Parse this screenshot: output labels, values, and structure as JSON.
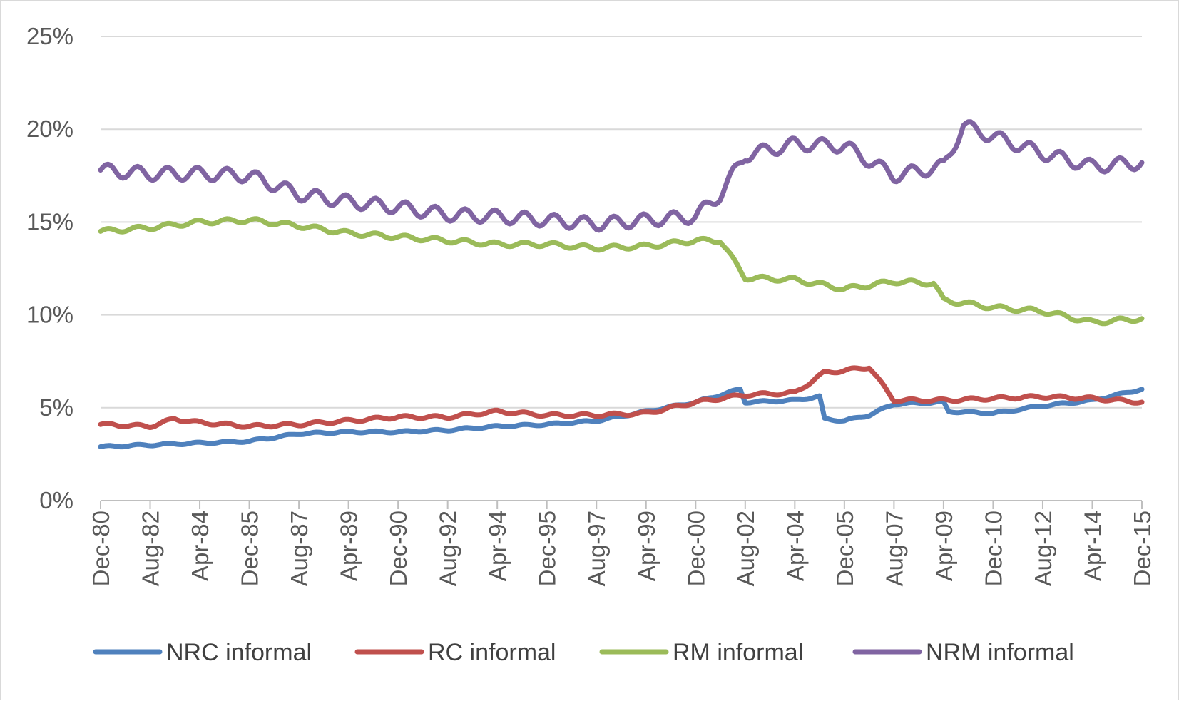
{
  "chart_data": {
    "type": "line",
    "title": "",
    "xlabel": "",
    "ylabel": "",
    "y_unit": "%",
    "ylim": [
      0,
      25
    ],
    "y_ticks": [
      0,
      5,
      10,
      15,
      20,
      25
    ],
    "y_tick_labels": [
      "0%",
      "5%",
      "10%",
      "15%",
      "20%",
      "25%"
    ],
    "x_range": [
      "1980-12",
      "2015-12"
    ],
    "x_tick_labels": [
      "Dec-80",
      "Aug-82",
      "Apr-84",
      "Dec-85",
      "Aug-87",
      "Apr-89",
      "Dec-90",
      "Aug-92",
      "Apr-94",
      "Dec-95",
      "Aug-97",
      "Apr-99",
      "Dec-00",
      "Aug-02",
      "Apr-04",
      "Dec-05",
      "Aug-07",
      "Apr-09",
      "Dec-10",
      "Aug-12",
      "Apr-14",
      "Dec-15"
    ],
    "grid": "horizontal",
    "legend": "bottom",
    "series": [
      {
        "name": "NRC informal",
        "color": "#4f81bd",
        "points": [
          [
            "1980-12",
            2.9
          ],
          [
            "1982-08",
            3.0
          ],
          [
            "1984-04",
            3.1
          ],
          [
            "1985-12",
            3.2
          ],
          [
            "1987-08",
            3.6
          ],
          [
            "1989-04",
            3.7
          ],
          [
            "1990-12",
            3.7
          ],
          [
            "1992-08",
            3.8
          ],
          [
            "1994-04",
            4.0
          ],
          [
            "1995-12",
            4.1
          ],
          [
            "1997-08",
            4.3
          ],
          [
            "1999-04",
            4.8
          ],
          [
            "2000-12",
            5.3
          ],
          [
            "2002-06",
            6.0
          ],
          [
            "2002-08",
            5.3
          ],
          [
            "2004-04",
            5.4
          ],
          [
            "2005-02",
            5.6
          ],
          [
            "2005-04",
            4.4
          ],
          [
            "2005-12",
            4.3
          ],
          [
            "2006-10",
            4.6
          ],
          [
            "2007-08",
            5.2
          ],
          [
            "2009-04",
            5.3
          ],
          [
            "2009-06",
            4.8
          ],
          [
            "2010-12",
            4.7
          ],
          [
            "2012-08",
            5.1
          ],
          [
            "2014-04",
            5.4
          ],
          [
            "2015-12",
            6.0
          ]
        ]
      },
      {
        "name": "RC informal",
        "color": "#c0504d",
        "points": [
          [
            "1980-12",
            4.1
          ],
          [
            "1982-08",
            4.0
          ],
          [
            "1983-06",
            4.4
          ],
          [
            "1984-04",
            4.2
          ],
          [
            "1985-12",
            4.0
          ],
          [
            "1987-08",
            4.1
          ],
          [
            "1989-04",
            4.3
          ],
          [
            "1990-12",
            4.5
          ],
          [
            "1992-08",
            4.5
          ],
          [
            "1994-04",
            4.8
          ],
          [
            "1995-12",
            4.6
          ],
          [
            "1997-08",
            4.6
          ],
          [
            "1999-04",
            4.7
          ],
          [
            "2000-12",
            5.3
          ],
          [
            "2002-08",
            5.7
          ],
          [
            "2004-04",
            5.8
          ],
          [
            "2005-04",
            6.9
          ],
          [
            "2005-12",
            7.0
          ],
          [
            "2006-10",
            7.2
          ],
          [
            "2007-08",
            5.4
          ],
          [
            "2009-04",
            5.4
          ],
          [
            "2010-12",
            5.5
          ],
          [
            "2012-08",
            5.6
          ],
          [
            "2014-04",
            5.5
          ],
          [
            "2015-12",
            5.3
          ]
        ]
      },
      {
        "name": "RM informal",
        "color": "#9bbb59",
        "points": [
          [
            "1980-12",
            14.5
          ],
          [
            "1982-08",
            14.7
          ],
          [
            "1984-04",
            15.0
          ],
          [
            "1985-12",
            15.1
          ],
          [
            "1987-08",
            14.8
          ],
          [
            "1989-04",
            14.4
          ],
          [
            "1990-12",
            14.2
          ],
          [
            "1992-08",
            14.0
          ],
          [
            "1994-04",
            13.8
          ],
          [
            "1995-12",
            13.8
          ],
          [
            "1997-08",
            13.6
          ],
          [
            "1999-04",
            13.7
          ],
          [
            "2000-12",
            14.0
          ],
          [
            "2001-10",
            14.0
          ],
          [
            "2002-08",
            12.0
          ],
          [
            "2004-04",
            11.9
          ],
          [
            "2005-12",
            11.4
          ],
          [
            "2007-08",
            11.8
          ],
          [
            "2008-12",
            11.7
          ],
          [
            "2009-04",
            10.8
          ],
          [
            "2010-12",
            10.4
          ],
          [
            "2012-08",
            10.2
          ],
          [
            "2014-04",
            9.6
          ],
          [
            "2015-12",
            9.8
          ]
        ]
      },
      {
        "name": "NRM informal",
        "color": "#8064a2",
        "points": [
          [
            "1980-12",
            17.8
          ],
          [
            "1982-08",
            17.6
          ],
          [
            "1984-04",
            17.6
          ],
          [
            "1985-12",
            17.5
          ],
          [
            "1987-08",
            16.5
          ],
          [
            "1989-04",
            16.1
          ],
          [
            "1990-12",
            15.8
          ],
          [
            "1992-08",
            15.4
          ],
          [
            "1994-04",
            15.3
          ],
          [
            "1995-12",
            15.1
          ],
          [
            "1997-08",
            14.9
          ],
          [
            "1999-04",
            15.1
          ],
          [
            "2000-12",
            15.3
          ],
          [
            "2001-10",
            16.5
          ],
          [
            "2002-08",
            18.6
          ],
          [
            "2004-04",
            19.2
          ],
          [
            "2005-12",
            19.1
          ],
          [
            "2007-08",
            17.5
          ],
          [
            "2009-04",
            18.0
          ],
          [
            "2009-12",
            20.2
          ],
          [
            "2010-12",
            19.6
          ],
          [
            "2012-08",
            18.7
          ],
          [
            "2014-04",
            18.0
          ],
          [
            "2015-12",
            18.2
          ]
        ]
      }
    ]
  }
}
